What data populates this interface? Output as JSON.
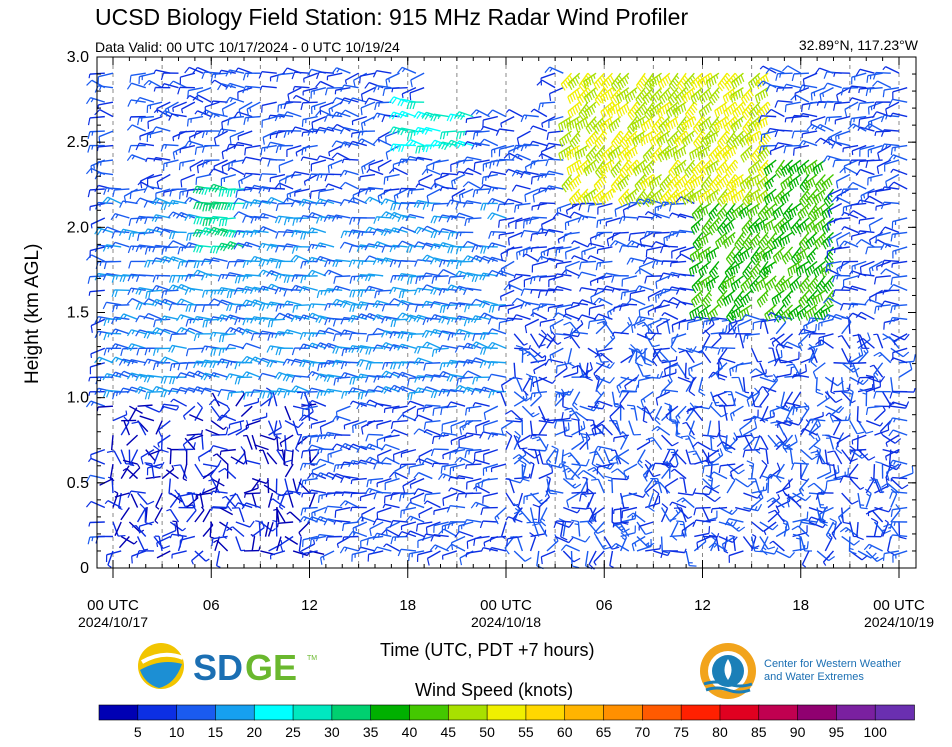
{
  "title": "UCSD Biology Field Station: 915 MHz Radar Wind Profiler",
  "subtitle": "Data Valid: 00 UTC 10/17/2024 - 0 UTC 10/19/24",
  "coords": "32.89°N, 117.23°W",
  "chart_data": {
    "type": "wind_barbs",
    "ylabel": "Height (km AGL)",
    "xlabel": "Time (UTC, PDT +7 hours)",
    "ylim": [
      0,
      3.0
    ],
    "yticks": [
      "0",
      "0.5",
      "1.0",
      "1.5",
      "2.0",
      "2.5",
      "3.0"
    ],
    "xlim_hours": [
      0,
      48
    ],
    "xticks": [
      {
        "hour": 0,
        "label": "00 UTC",
        "date": "2024/10/17"
      },
      {
        "hour": 6,
        "label": "06",
        "date": ""
      },
      {
        "hour": 12,
        "label": "12",
        "date": ""
      },
      {
        "hour": 18,
        "label": "18",
        "date": ""
      },
      {
        "hour": 24,
        "label": "00 UTC",
        "date": "2024/10/18"
      },
      {
        "hour": 30,
        "label": "06",
        "date": ""
      },
      {
        "hour": 36,
        "label": "12",
        "date": ""
      },
      {
        "hour": 42,
        "label": "18",
        "date": ""
      },
      {
        "hour": 48,
        "label": "00 UTC",
        "date": "2024/10/19"
      }
    ],
    "grid_dashed_hours": [
      0,
      3,
      6,
      9,
      12,
      15,
      18,
      21,
      24,
      27,
      30,
      33,
      36,
      39,
      42,
      45,
      48
    ],
    "colorbar": {
      "label": "Wind Speed (knots)",
      "ticks": [
        "5",
        "10",
        "15",
        "20",
        "25",
        "30",
        "35",
        "40",
        "45",
        "50",
        "55",
        "60",
        "65",
        "70",
        "75",
        "80",
        "85",
        "90",
        "95",
        "100"
      ],
      "colors": [
        "#0000b4",
        "#0c2fe3",
        "#1a5bf0",
        "#16a0f0",
        "#00ffff",
        "#00e8c0",
        "#00d070",
        "#00b000",
        "#44c800",
        "#a8e000",
        "#f0f000",
        "#ffd800",
        "#ffb400",
        "#ff9000",
        "#ff5a00",
        "#ff2000",
        "#e00020",
        "#c00050",
        "#900070",
        "#7a20a0",
        "#6a2fb0"
      ]
    },
    "wind_fields": [
      {
        "hours": [
          0,
          12
        ],
        "heights_km": [
          0,
          1.0
        ],
        "speed_kt": 5,
        "direction": "variable"
      },
      {
        "hours": [
          0,
          24
        ],
        "heights_km": [
          1.0,
          2.2
        ],
        "speed_kt": 15,
        "direction": "westerly"
      },
      {
        "hours": [
          6,
          8
        ],
        "heights_km": [
          1.8,
          2.3
        ],
        "speed_kt": 30,
        "direction": "westerly"
      },
      {
        "hours": [
          18,
          22
        ],
        "heights_km": [
          2.4,
          2.8
        ],
        "speed_kt": 25,
        "direction": "westerly"
      },
      {
        "hours": [
          28,
          40
        ],
        "heights_km": [
          2.2,
          3.0
        ],
        "speed_kt": 50,
        "direction": "southwesterly"
      },
      {
        "hours": [
          36,
          44
        ],
        "heights_km": [
          1.5,
          2.4
        ],
        "speed_kt": 40,
        "direction": "southwesterly"
      },
      {
        "hours": [
          24,
          48
        ],
        "heights_km": [
          0,
          1.4
        ],
        "speed_kt": 10,
        "direction": "variable"
      }
    ]
  },
  "logos": {
    "sdge": "SDGE",
    "sdge_tm": "TM",
    "cw3e_line1": "Center for Western Weather",
    "cw3e_line2": "and Water Extremes"
  }
}
